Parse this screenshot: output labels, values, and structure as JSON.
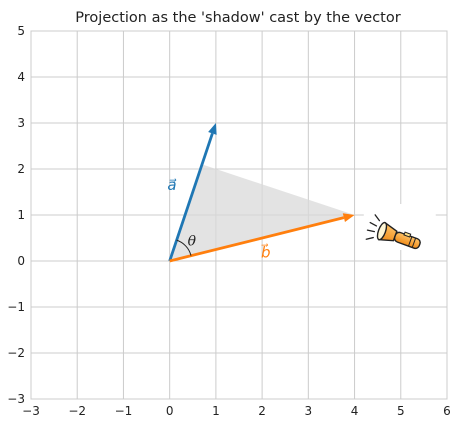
{
  "chart_data": {
    "type": "vector-diagram",
    "title": "Projection as the 'shadow' cast by the vector",
    "xlim": [
      -3,
      6
    ],
    "ylim": [
      -3,
      5
    ],
    "grid": true,
    "xticks": [
      -3,
      -2,
      -1,
      0,
      1,
      2,
      3,
      4,
      5,
      6
    ],
    "yticks": [
      -3,
      -2,
      -1,
      0,
      1,
      2,
      3,
      4,
      5
    ],
    "vectors": [
      {
        "name": "a",
        "label": "a⃗",
        "origin": [
          0,
          0
        ],
        "tip": [
          1,
          3
        ],
        "color": "#1f77b4"
      },
      {
        "name": "b",
        "label": "b⃗",
        "origin": [
          0,
          0
        ],
        "tip": [
          4,
          1
        ],
        "color": "#ff7f0e"
      }
    ],
    "shadow_polygon": [
      [
        0,
        0
      ],
      [
        0.7,
        2.1
      ],
      [
        4,
        1
      ]
    ],
    "shadow_color": "#d9d9d9",
    "angle_label": "θ",
    "annotation_icon": "flashlight-icon",
    "annotation_position": [
      5,
      0.5
    ]
  }
}
